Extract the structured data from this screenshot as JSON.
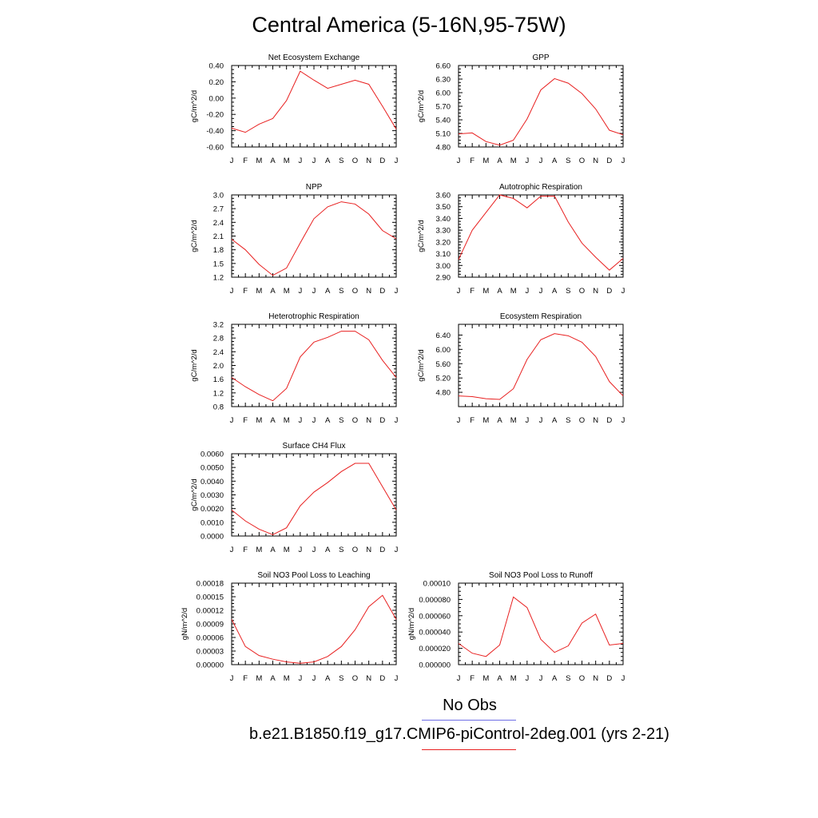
{
  "title": "Central America (5-16N,95-75W)",
  "month_labels": [
    "J",
    "F",
    "M",
    "A",
    "M",
    "J",
    "J",
    "A",
    "S",
    "O",
    "N",
    "D",
    "J"
  ],
  "legend": {
    "obs_label": "No Obs",
    "obs_color": "#6f6fe6",
    "model_label": "b.e21.B1850.f19_g17.CMIP6-piControl-2deg.001 (yrs 2-21)",
    "model_color": "#e82020"
  },
  "chart_data": [
    {
      "type": "line",
      "title": "Net Ecosystem Exchange",
      "ylabel": "gC/m^2/d",
      "ylim": [
        -0.6,
        0.4
      ],
      "yticks": [
        -0.6,
        -0.4,
        -0.2,
        0.0,
        0.2,
        0.4
      ],
      "ytick_labels": [
        "-0.60",
        "-0.40",
        "-0.20",
        "0.00",
        "0.20",
        "0.40"
      ],
      "values": [
        -0.37,
        -0.42,
        -0.32,
        -0.25,
        -0.03,
        0.33,
        0.22,
        0.12,
        0.17,
        0.22,
        0.17,
        -0.1,
        -0.38
      ]
    },
    {
      "type": "line",
      "title": "GPP",
      "ylabel": "gC/m^2/d",
      "ylim": [
        4.8,
        6.6
      ],
      "yticks": [
        4.8,
        5.1,
        5.4,
        5.7,
        6.0,
        6.3,
        6.6
      ],
      "ytick_labels": [
        "4.80",
        "5.10",
        "5.40",
        "5.70",
        "6.00",
        "6.30",
        "6.60"
      ],
      "values": [
        5.09,
        5.11,
        4.92,
        4.84,
        4.95,
        5.42,
        6.06,
        6.31,
        6.21,
        5.98,
        5.64,
        5.17,
        5.07
      ]
    },
    {
      "type": "line",
      "title": "NPP",
      "ylabel": "gC/m^2/d",
      "ylim": [
        1.2,
        3.0
      ],
      "yticks": [
        1.2,
        1.5,
        1.8,
        2.1,
        2.4,
        2.7,
        3.0
      ],
      "ytick_labels": [
        "1.2",
        "1.5",
        "1.8",
        "2.1",
        "2.4",
        "2.7",
        "3.0"
      ],
      "values": [
        2.03,
        1.8,
        1.48,
        1.24,
        1.4,
        1.95,
        2.48,
        2.74,
        2.85,
        2.8,
        2.58,
        2.22,
        2.04
      ]
    },
    {
      "type": "line",
      "title": "Autotrophic Respiration",
      "ylabel": "gC/m^2/d",
      "ylim": [
        2.9,
        3.6
      ],
      "yticks": [
        2.9,
        3.0,
        3.1,
        3.2,
        3.3,
        3.4,
        3.5,
        3.6
      ],
      "ytick_labels": [
        "2.90",
        "3.00",
        "3.10",
        "3.20",
        "3.30",
        "3.40",
        "3.50",
        "3.60"
      ],
      "values": [
        3.05,
        3.3,
        3.45,
        3.6,
        3.57,
        3.49,
        3.59,
        3.59,
        3.37,
        3.19,
        3.07,
        2.96,
        3.06
      ]
    },
    {
      "type": "line",
      "title": "Heterotrophic Respiration",
      "ylabel": "gC/m^2/d",
      "ylim": [
        0.8,
        3.2
      ],
      "yticks": [
        0.8,
        1.2,
        1.6,
        2.0,
        2.4,
        2.8,
        3.2
      ],
      "ytick_labels": [
        "0.8",
        "1.2",
        "1.6",
        "2.0",
        "2.4",
        "2.8",
        "3.2"
      ],
      "values": [
        1.65,
        1.38,
        1.15,
        0.97,
        1.33,
        2.25,
        2.68,
        2.82,
        3.0,
        3.0,
        2.75,
        2.15,
        1.65
      ]
    },
    {
      "type": "line",
      "title": "Ecosystem Respiration",
      "ylabel": "gC/m^2/d",
      "ylim": [
        4.4,
        6.7
      ],
      "yticks": [
        4.8,
        5.2,
        5.6,
        6.0,
        6.4
      ],
      "ytick_labels": [
        "4.80",
        "5.20",
        "5.60",
        "6.00",
        "6.40"
      ],
      "values": [
        4.7,
        4.68,
        4.62,
        4.6,
        4.9,
        5.72,
        6.27,
        6.44,
        6.38,
        6.2,
        5.8,
        5.1,
        4.7
      ]
    },
    {
      "type": "line",
      "title": "Surface CH4 Flux",
      "ylabel": "gC/m^2/d",
      "ylim": [
        0.0,
        0.006
      ],
      "yticks": [
        0.0,
        0.001,
        0.002,
        0.003,
        0.004,
        0.005,
        0.006
      ],
      "ytick_labels": [
        "0.0000",
        "0.0010",
        "0.0020",
        "0.0030",
        "0.0040",
        "0.0050",
        "0.0060"
      ],
      "values": [
        0.0019,
        0.0011,
        0.0005,
        0.0001,
        0.0006,
        0.0022,
        0.0032,
        0.0039,
        0.0047,
        0.0053,
        0.0053,
        0.0036,
        0.0019
      ]
    },
    {
      "type": "line",
      "title": "Soil NO3 Pool Loss to Leaching",
      "ylabel": "gN/m^2/d",
      "ylim": [
        0.0,
        0.00018
      ],
      "yticks": [
        0.0,
        3e-05,
        6e-05,
        9e-05,
        0.00012,
        0.00015,
        0.00018
      ],
      "ytick_labels": [
        "0.00000",
        "0.00003",
        "0.00006",
        "0.00009",
        "0.00012",
        "0.00015",
        "0.00018"
      ],
      "values": [
        0.0001,
        4e-05,
        2e-05,
        1.2e-05,
        6e-06,
        3e-06,
        6e-06,
        1.8e-05,
        4e-05,
        7.7e-05,
        0.000128,
        0.000153,
        0.0001
      ]
    },
    {
      "type": "line",
      "title": "Soil NO3 Pool Loss to Runoff",
      "ylabel": "gN/m^2/d",
      "ylim": [
        0.0,
        0.0001
      ],
      "yticks": [
        0.0,
        2e-05,
        4e-05,
        6e-05,
        8e-05,
        0.0001
      ],
      "ytick_labels": [
        "0.000000",
        "0.000020",
        "0.000040",
        "0.000060",
        "0.000080",
        "0.00010"
      ],
      "values": [
        2.6e-05,
        1.4e-05,
        1e-05,
        2.4e-05,
        8.3e-05,
        7e-05,
        3.1e-05,
        1.5e-05,
        2.3e-05,
        5.1e-05,
        6.2e-05,
        2.4e-05,
        2.6e-05
      ]
    }
  ]
}
